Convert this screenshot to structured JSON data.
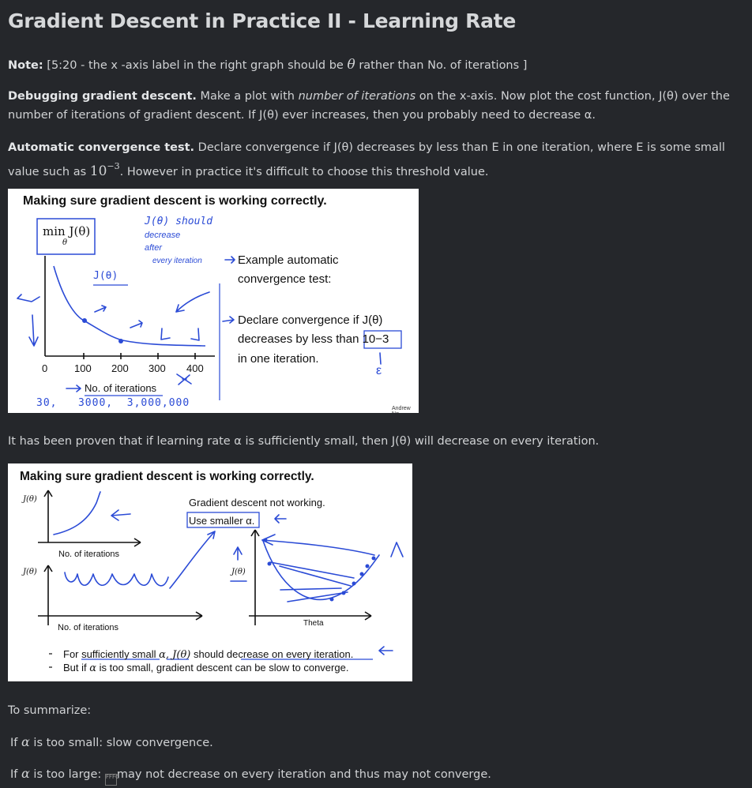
{
  "page": {
    "title": "Gradient Descent in Practice II - Learning Rate"
  },
  "note": {
    "label": "Note:",
    "text_before": " [5:20 - the x -axis label in the right graph should be ",
    "symbol": "θ",
    "text_after": " rather than No. of iterations ]"
  },
  "debugging": {
    "label": "Debugging gradient descent.",
    "text1": " Make a plot with ",
    "emph": "number of iterations",
    "text2": " on the x-axis. Now plot the cost function, J(θ) over the number of iterations of gradient descent. If J(θ) ever increases, then you probably need to decrease α."
  },
  "automatic": {
    "label": "Automatic convergence test.",
    "text1": " Declare convergence if J(θ) decreases by less than E in one iteration, where E is some small value such as ",
    "base": "10",
    "exp": "−3",
    "text2": ". However in practice it's difficult to choose this threshold value."
  },
  "slide1": {
    "title": "Making sure gradient descent is working correctly.",
    "min_label": "min J(θ)",
    "min_sub": "θ",
    "annot_should": "J(θ) should",
    "annot_decrease": "decrease",
    "annot_after": "after",
    "annot_every": "every iteration",
    "curve_label": "J(θ)",
    "example_line1": "Example automatic",
    "example_line2": "convergence test:",
    "declare_line1": "Declare convergence if J(θ)",
    "declare_line2": "decreases by less than 10−3",
    "declare_line3": "in one iteration.",
    "epsilon": "ε",
    "ticks": [
      "0",
      "100",
      "200",
      "300",
      "400"
    ],
    "xlabel": "No. of iterations",
    "hand_numbers": "30,   3000,  3,000,000",
    "credit": "Andrew Ng"
  },
  "proven": {
    "text": "It has been proven that if learning rate α is sufficiently small, then J(θ) will decrease on every iteration."
  },
  "slide2": {
    "title": "Making sure gradient descent is working correctly.",
    "j_label_top": "J(θ)",
    "j_label_mid": "J(θ)",
    "j_label_bowl": "J(θ)",
    "xlabel_top": "No. of iterations",
    "xlabel_bottom": "No. of iterations",
    "not_working": "Gradient descent not working.",
    "use_smaller": "Use smaller α.",
    "theta_label": "Theta",
    "bullet1_pre": "For sufficiently small ",
    "bullet1_mid": "α, J(θ)",
    "bullet1_post": " should decrease on every iteration.",
    "bullet2_pre": "But if ",
    "bullet2_mid": "α",
    "bullet2_post": " is too small, gradient descent can be slow to converge."
  },
  "summary": {
    "intro": "To summarize:",
    "small_pre": "If ",
    "small_alpha": "α",
    "small_post": " is too small: slow convergence.",
    "large_pre": "If ",
    "large_alpha": "α",
    "large_mid": " is too large: ",
    "large_glyph": "FFFC",
    "large_post": "may not decrease on every iteration and thus may not converge."
  }
}
